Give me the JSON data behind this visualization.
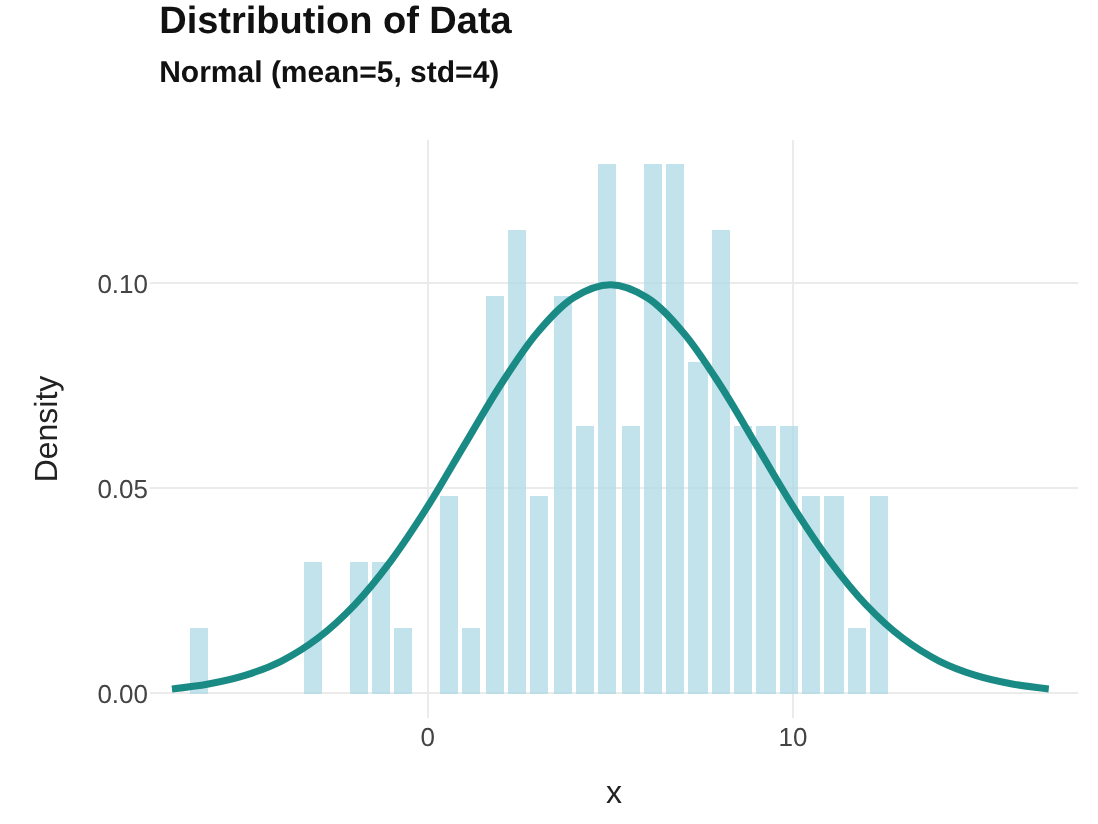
{
  "chart_data": {
    "type": "histogram",
    "title": "Distribution of Data",
    "subtitle": "Normal (mean=5, std=4)",
    "xlabel": "x",
    "ylabel": "Density",
    "series": [
      {
        "color": "#add8e6",
        "bins": [
          -6.55,
          -5.93,
          -5.31,
          -4.69,
          -4.07,
          -3.45,
          -2.83,
          -2.21,
          -1.59,
          -0.97,
          -0.35,
          0.27,
          0.89,
          1.51,
          2.13,
          2.75,
          3.37,
          3.99,
          4.61,
          5.23,
          5.85,
          6.47,
          7.09,
          7.71,
          8.33,
          8.95,
          9.57,
          10.19,
          10.81,
          11.43,
          12.05,
          12.67
        ],
        "values": [
          0.016,
          0,
          0,
          0,
          0,
          0.032,
          0,
          0.032,
          0.032,
          0.016,
          0,
          0.048,
          0.016,
          0.097,
          0.113,
          0.048,
          0.097,
          0.065,
          0.129,
          0.065,
          0.129,
          0.129,
          0.081,
          0.113,
          0.065,
          0.065,
          0.065,
          0.048,
          0.048,
          0.016,
          0.048
        ]
      },
      {
        "type": "line",
        "color": "#1a8a84",
        "x": [
          -7,
          -6,
          -5,
          -4,
          -3,
          -2,
          -1,
          0,
          1,
          2,
          3,
          4,
          5,
          6,
          7,
          8,
          9,
          10,
          11,
          12,
          13,
          14,
          15,
          16,
          17
        ],
        "values": [
          0.0011,
          0.0023,
          0.0044,
          0.0079,
          0.0135,
          0.0216,
          0.0324,
          0.0456,
          0.0605,
          0.0753,
          0.088,
          0.0966,
          0.0997,
          0.0966,
          0.088,
          0.0753,
          0.0605,
          0.0456,
          0.0324,
          0.0216,
          0.0135,
          0.0079,
          0.0044,
          0.0023,
          0.0011
        ]
      }
    ],
    "xlim": [
      -7.6,
      17.8
    ],
    "ylim": [
      -0.006,
      0.135
    ],
    "xticks": [
      0,
      10
    ],
    "yticks": [
      {
        "value": 0,
        "label": "0.00"
      },
      {
        "value": 0.05,
        "label": "0.05"
      },
      {
        "value": 0.1,
        "label": "0.10"
      }
    ],
    "grid": true
  }
}
